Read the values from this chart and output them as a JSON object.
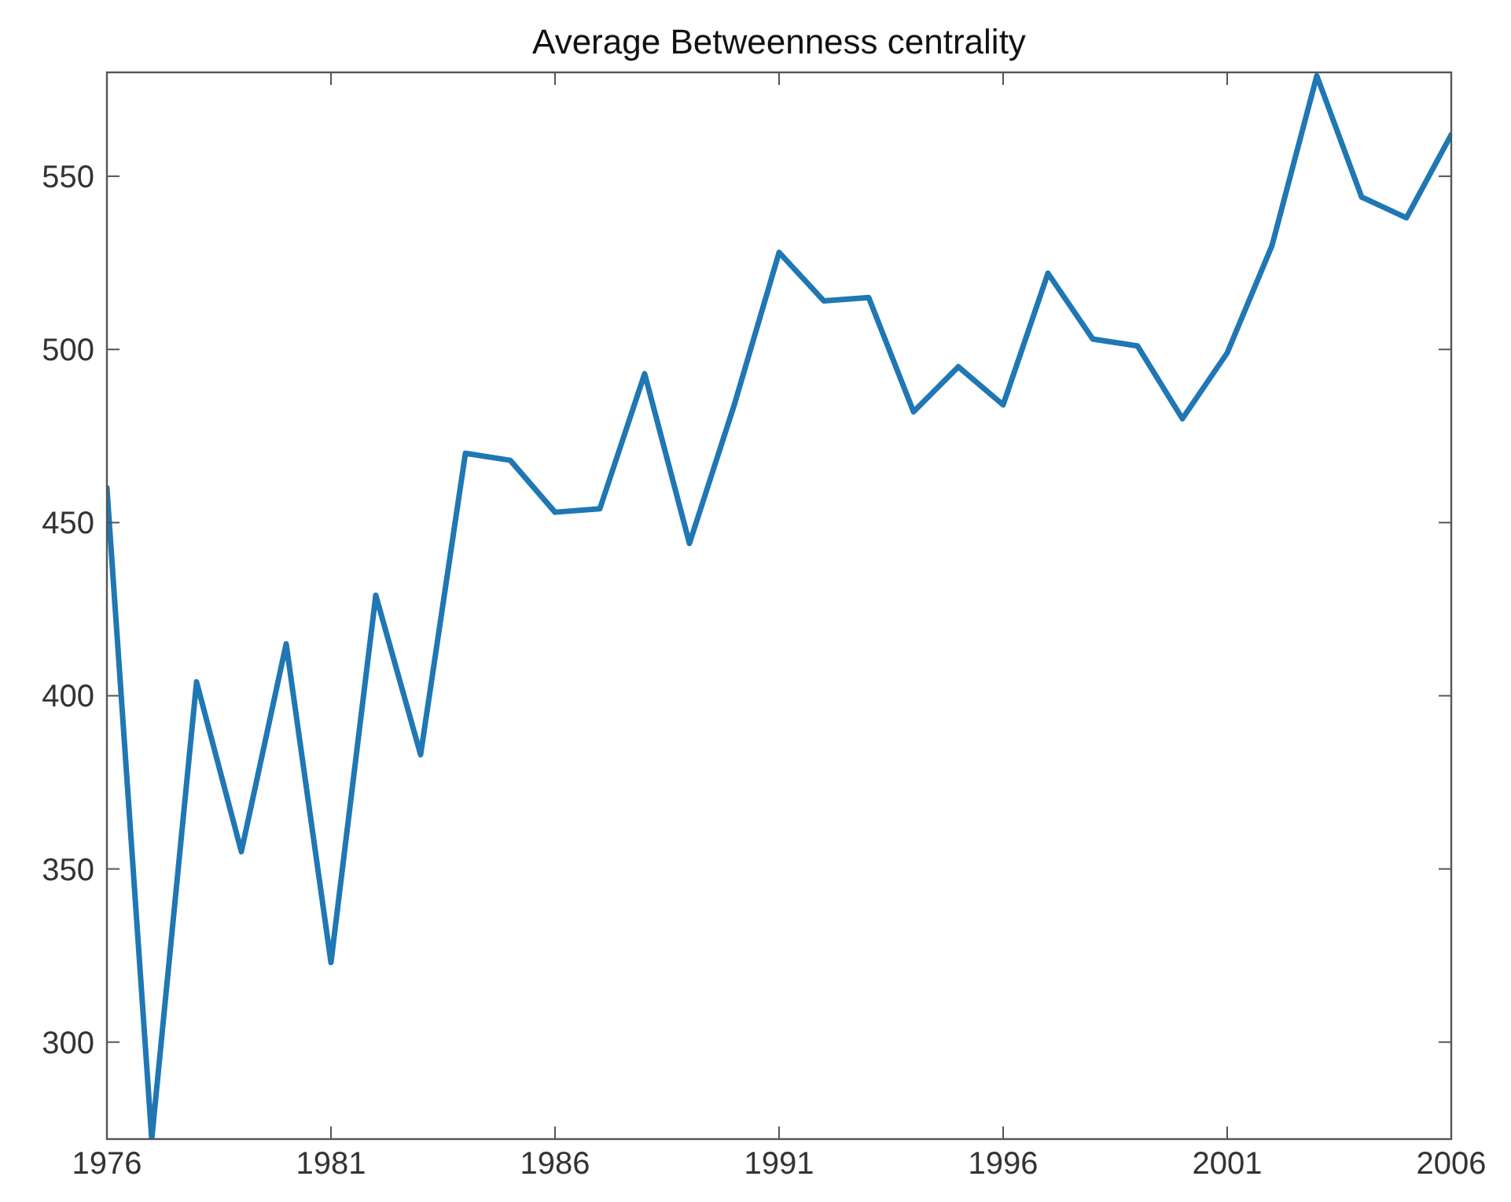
{
  "chart_data": {
    "type": "line",
    "title": "Average Betweenness centrality",
    "x": [
      1976,
      1977,
      1978,
      1979,
      1980,
      1981,
      1982,
      1983,
      1984,
      1985,
      1986,
      1987,
      1988,
      1989,
      1990,
      1991,
      1992,
      1993,
      1994,
      1995,
      1996,
      1997,
      1998,
      1999,
      2000,
      2001,
      2002,
      2003,
      2004,
      2005,
      2006
    ],
    "series": [
      {
        "color": "#1f77b4",
        "values": [
          460,
          272,
          404,
          355,
          415,
          323,
          429,
          383,
          470,
          468,
          453,
          454,
          493,
          444,
          484,
          528,
          514,
          515,
          482,
          495,
          484,
          522,
          503,
          501,
          480,
          499,
          530,
          579,
          544,
          538,
          562
        ]
      }
    ],
    "xlim": [
      1976,
      2006
    ],
    "xticks": [
      1976,
      1981,
      1986,
      1991,
      1996,
      2001,
      2006
    ],
    "ylim": [
      272,
      580
    ],
    "yticks": [
      300,
      350,
      400,
      450,
      500,
      550
    ],
    "grid": false,
    "marker": "none",
    "line_style": "solid"
  }
}
